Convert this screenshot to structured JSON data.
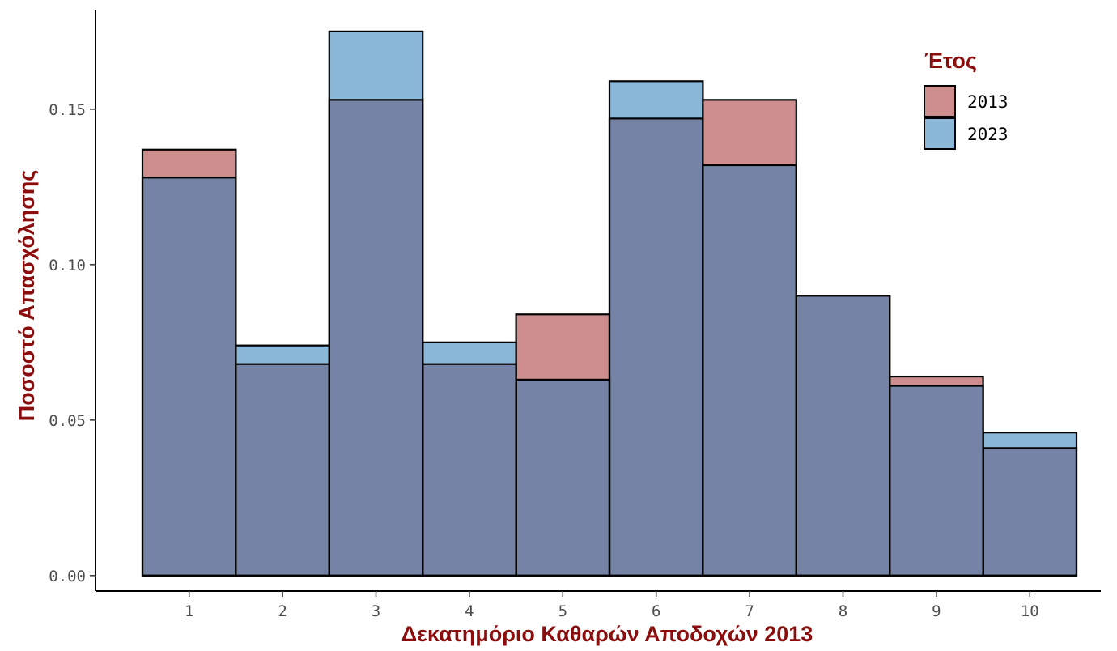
{
  "chart_data": {
    "type": "bar",
    "overlay": true,
    "categories": [
      "1",
      "2",
      "3",
      "4",
      "5",
      "6",
      "7",
      "8",
      "9",
      "10"
    ],
    "series": [
      {
        "name": "2013",
        "color": "#a83232",
        "values": [
          0.137,
          0.068,
          0.153,
          0.068,
          0.084,
          0.147,
          0.153,
          0.09,
          0.064,
          0.041
        ]
      },
      {
        "name": "2023",
        "color": "#2b7bba",
        "values": [
          0.128,
          0.074,
          0.175,
          0.075,
          0.063,
          0.159,
          0.132,
          0.09,
          0.061,
          0.046
        ]
      }
    ],
    "xlabel": "Δεκατημόριο Καθαρών Αποδοχών 2013",
    "ylabel": "Ποσοστό Απασχόλησης",
    "ylim": [
      -0.005,
      0.182
    ],
    "yticks": [
      0,
      0.05,
      0.1,
      0.15
    ],
    "ytick_labels": [
      "0.00",
      "0.05",
      "0.10",
      "0.15"
    ],
    "legend_title": "Έτος",
    "legend_position": "top-right",
    "grid": false,
    "title_color": "#8b0e0e",
    "bar_outline": "#000000",
    "bar_opacity": 0.55
  }
}
